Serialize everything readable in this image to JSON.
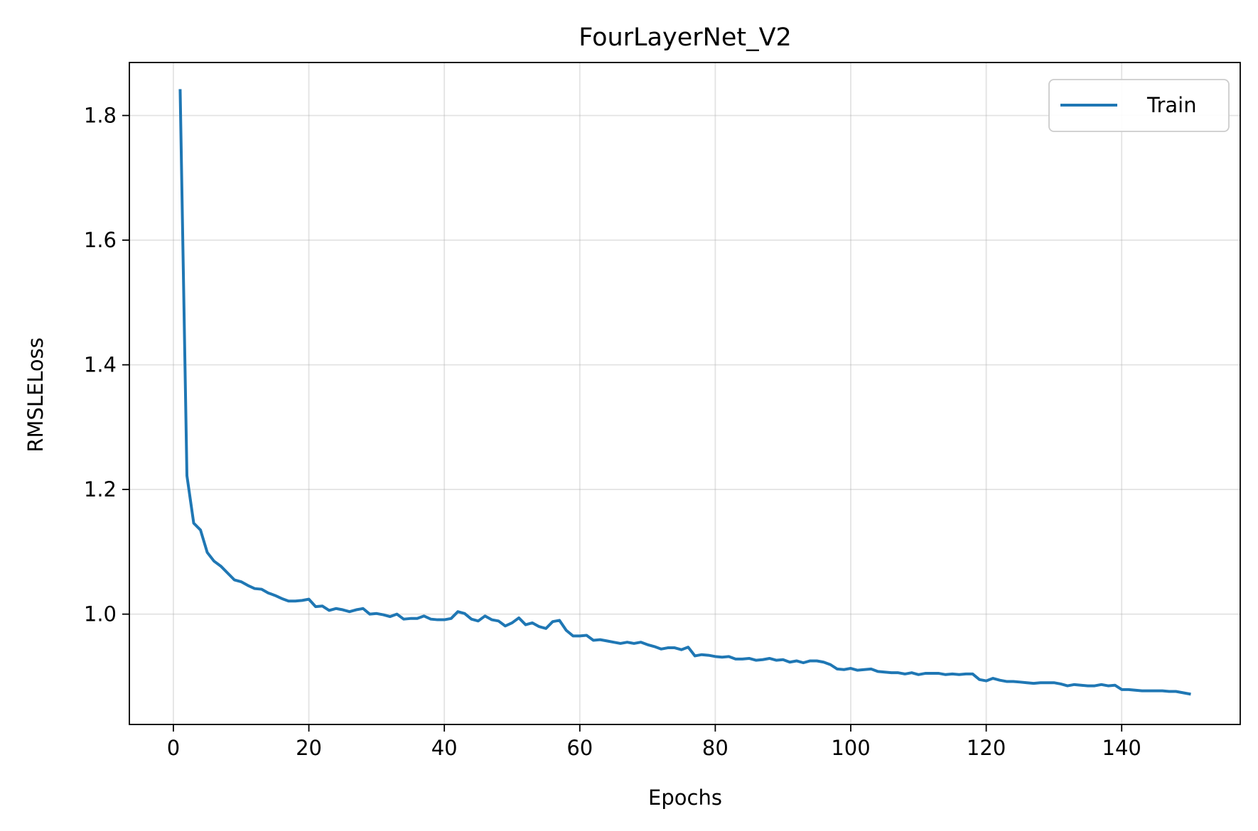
{
  "chart_data": {
    "type": "line",
    "title": "FourLayerNet_V2",
    "xlabel": "Epochs",
    "ylabel": "RMSLELoss",
    "xlim": [
      -6.5,
      157.5
    ],
    "ylim": [
      0.823,
      1.885
    ],
    "xticks": [
      0,
      20,
      40,
      60,
      80,
      100,
      120,
      140
    ],
    "yticks": [
      1.0,
      1.2,
      1.4,
      1.6,
      1.8
    ],
    "ytick_labels": [
      "1.0",
      "1.2",
      "1.4",
      "1.6",
      "1.8"
    ],
    "grid": true,
    "legend_position": "top-right",
    "series": [
      {
        "name": "Train",
        "color": "#1f77b4",
        "x": [
          1,
          2,
          3,
          4,
          5,
          6,
          7,
          8,
          9,
          10,
          11,
          12,
          13,
          14,
          15,
          16,
          17,
          18,
          19,
          20,
          21,
          22,
          23,
          24,
          25,
          26,
          27,
          28,
          29,
          30,
          31,
          32,
          33,
          34,
          35,
          36,
          37,
          38,
          39,
          40,
          41,
          42,
          43,
          44,
          45,
          46,
          47,
          48,
          49,
          50,
          51,
          52,
          53,
          54,
          55,
          56,
          57,
          58,
          59,
          60,
          61,
          62,
          63,
          64,
          65,
          66,
          67,
          68,
          69,
          70,
          71,
          72,
          73,
          74,
          75,
          76,
          77,
          78,
          79,
          80,
          81,
          82,
          83,
          84,
          85,
          86,
          87,
          88,
          89,
          90,
          91,
          92,
          93,
          94,
          95,
          96,
          97,
          98,
          99,
          100,
          101,
          102,
          103,
          104,
          105,
          106,
          107,
          108,
          109,
          110,
          111,
          112,
          113,
          114,
          115,
          116,
          117,
          118,
          119,
          120,
          121,
          122,
          123,
          124,
          125,
          126,
          127,
          128,
          129,
          130,
          131,
          132,
          133,
          134,
          135,
          136,
          137,
          138,
          139,
          140,
          141,
          142,
          143,
          144,
          145,
          146,
          147,
          148,
          149,
          150
        ],
        "values": [
          1.84,
          1.222,
          1.146,
          1.135,
          1.099,
          1.085,
          1.077,
          1.066,
          1.055,
          1.052,
          1.046,
          1.041,
          1.04,
          1.034,
          1.03,
          1.025,
          1.021,
          1.021,
          1.022,
          1.024,
          1.012,
          1.013,
          1.006,
          1.009,
          1.007,
          1.004,
          1.007,
          1.009,
          1.0,
          1.001,
          0.999,
          0.996,
          1.0,
          0.992,
          0.993,
          0.993,
          0.997,
          0.992,
          0.991,
          0.991,
          0.993,
          1.004,
          1.001,
          0.992,
          0.989,
          0.997,
          0.991,
          0.989,
          0.981,
          0.986,
          0.994,
          0.983,
          0.986,
          0.98,
          0.977,
          0.988,
          0.99,
          0.974,
          0.965,
          0.965,
          0.966,
          0.958,
          0.959,
          0.957,
          0.955,
          0.953,
          0.955,
          0.953,
          0.955,
          0.951,
          0.948,
          0.944,
          0.946,
          0.946,
          0.943,
          0.947,
          0.933,
          0.935,
          0.934,
          0.932,
          0.931,
          0.932,
          0.928,
          0.928,
          0.929,
          0.926,
          0.927,
          0.929,
          0.926,
          0.927,
          0.923,
          0.925,
          0.922,
          0.925,
          0.925,
          0.923,
          0.919,
          0.912,
          0.911,
          0.913,
          0.91,
          0.911,
          0.912,
          0.908,
          0.907,
          0.906,
          0.906,
          0.904,
          0.906,
          0.903,
          0.905,
          0.905,
          0.905,
          0.903,
          0.904,
          0.903,
          0.904,
          0.904,
          0.895,
          0.893,
          0.897,
          0.894,
          0.892,
          0.892,
          0.891,
          0.89,
          0.889,
          0.89,
          0.89,
          0.89,
          0.888,
          0.885,
          0.887,
          0.886,
          0.885,
          0.885,
          0.887,
          0.885,
          0.886,
          0.879,
          0.879,
          0.878,
          0.877,
          0.877,
          0.877,
          0.877,
          0.876,
          0.876,
          0.874,
          0.872
        ]
      }
    ]
  }
}
